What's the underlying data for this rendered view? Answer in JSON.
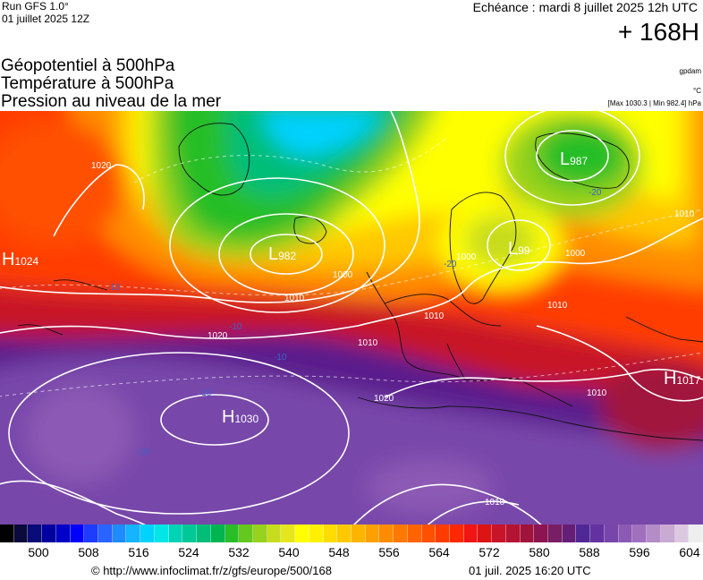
{
  "header": {
    "run": "Run GFS 1.0°",
    "run_date": "01 juillet 2025 12Z",
    "echeance": "Echéance : mardi 8 juillet 2025 12h UTC",
    "lead": "+ 168H"
  },
  "layers": {
    "line1": "Géopotentiel à 500hPa",
    "line2": "Température à 500hPa",
    "line3": "Pression au niveau de la mer"
  },
  "units": {
    "geopotential": "gpdam",
    "temperature": "°C",
    "minmax": "[Max 1030.3 | Min 982.4] hPa"
  },
  "map": {
    "pressure_centers": [
      {
        "type": "L",
        "value": "982"
      },
      {
        "type": "L",
        "value": "987"
      },
      {
        "type": "L",
        "value": "99"
      },
      {
        "type": "H",
        "value": "1024"
      },
      {
        "type": "H",
        "value": "1030"
      },
      {
        "type": "H",
        "value": "1017"
      }
    ],
    "isobar_labels": [
      "1020",
      "1010",
      "1000",
      "1000",
      "1010",
      "1010",
      "1020",
      "1010",
      "1020",
      "1010",
      "1010",
      "1010",
      "1000"
    ],
    "temperature_labels": [
      "-10",
      "-10",
      "-10",
      "-10",
      "-20",
      "-20",
      "-10"
    ]
  },
  "legend": {
    "colors": [
      "#000000",
      "#0a0a3c",
      "#0a0a78",
      "#0000a0",
      "#0000c8",
      "#0000ff",
      "#1e3cff",
      "#2864ff",
      "#1e8cff",
      "#14b4ff",
      "#00d2ff",
      "#00e6e6",
      "#00d2b4",
      "#00c896",
      "#00be78",
      "#00b450",
      "#28be28",
      "#64c81e",
      "#96d21e",
      "#c8dc1e",
      "#e6e61e",
      "#ffff00",
      "#fff000",
      "#ffdc00",
      "#ffc800",
      "#ffb400",
      "#ffa000",
      "#ff8c00",
      "#ff7800",
      "#ff6400",
      "#ff5000",
      "#ff3c00",
      "#ff2800",
      "#f01414",
      "#dc1414",
      "#c81428",
      "#b41432",
      "#a0143c",
      "#8c1450",
      "#781e64",
      "#641e78",
      "#502896",
      "#6432a0",
      "#7846aa",
      "#8c5ab4",
      "#a070be",
      "#b48cc8",
      "#c8aad2",
      "#dcc8e1",
      "#eeeeee"
    ],
    "ticks": [
      "500",
      "508",
      "516",
      "524",
      "532",
      "540",
      "548",
      "556",
      "564",
      "572",
      "580",
      "588",
      "596",
      "604"
    ]
  },
  "footer": {
    "credit": "© http://www.infoclimat.fr/z/gfs/europe/500/168",
    "generated": "01 juil. 2025 16:20 UTC"
  }
}
